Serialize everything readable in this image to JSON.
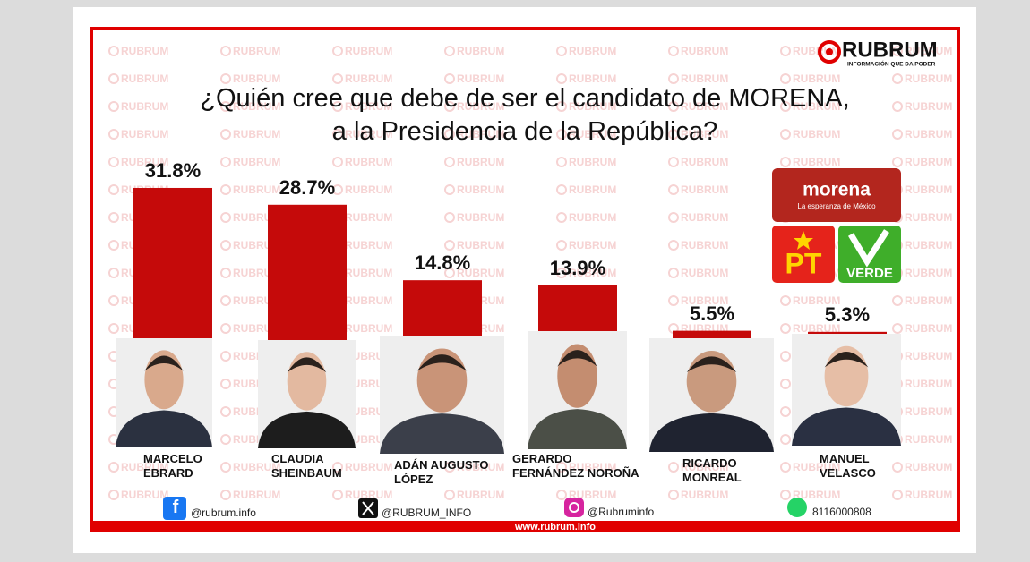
{
  "chart_data": {
    "type": "bar",
    "title": "¿Quién cree que debe de ser el candidato de MORENA,\na la Presidencia de la República?",
    "categories": [
      "MARCELO\nEBRARD",
      "CLAUDIA\nSHEINBAUM",
      "ADÁN AUGUSTO\nLÓPEZ",
      "GERARDO\nFERNÁNDEZ NOROÑA",
      "RICARDO\nMONREAL",
      "MANUEL\nVELASCO"
    ],
    "values": [
      31.8,
      28.7,
      14.8,
      13.9,
      5.5,
      5.3
    ],
    "value_labels": [
      "31.8%",
      "28.7%",
      "14.8%",
      "13.9%",
      "5.5%",
      "5.3%"
    ],
    "color": "#c50a0a"
  },
  "header": {
    "brand": "RUBRUM",
    "tagline": "INFORMACIÓN QUE DA PODER"
  },
  "watermark": "RUBRUM",
  "parties": {
    "morena": "morena",
    "morena_tagline": "La esperanza de México",
    "pt": "PT",
    "verde": "VERDE"
  },
  "social": [
    "@rubrum.info",
    "@RUBRUM_INFO",
    "@Rubruminfo",
    "8116000808"
  ],
  "website": "www.rubrum.info"
}
